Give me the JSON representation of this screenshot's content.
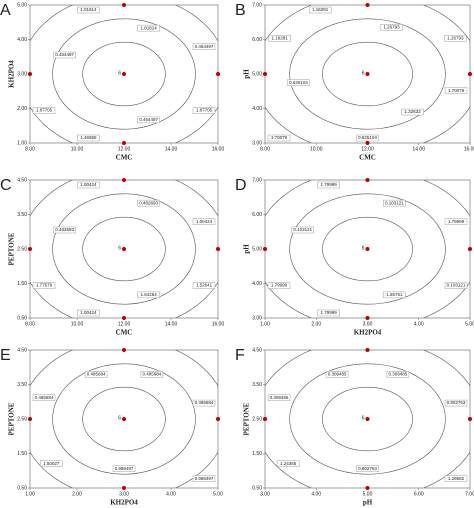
{
  "chart_data": [
    {
      "type": "contour",
      "panel_label": "A",
      "xlabel": "CMC",
      "ylabel": "KH2PO4",
      "xlim": [
        8,
        16
      ],
      "ylim": [
        1,
        5
      ],
      "xticks": [
        {
          "value": 8,
          "label": "8.00"
        },
        {
          "value": 10,
          "label": "10.00"
        },
        {
          "value": 12,
          "label": "12.00"
        },
        {
          "value": 14,
          "label": "14.00"
        },
        {
          "value": 16,
          "label": "16.00"
        }
      ],
      "yticks": [
        {
          "value": 1,
          "label": "1.00"
        },
        {
          "value": 2,
          "label": "2.00"
        },
        {
          "value": 3,
          "label": "3.00"
        },
        {
          "value": 4,
          "label": "4.00"
        },
        {
          "value": 5,
          "label": "5.00"
        }
      ],
      "center_label": "6",
      "points": {
        "x": [
          8,
          12,
          16,
          12,
          12
        ],
        "y": [
          3,
          3,
          3,
          1,
          5
        ],
        "color": "#c00000"
      },
      "annotations": [
        "1.01814",
        "0.464497",
        "1.87705",
        "0.464497",
        "1.46965",
        "1.87705",
        "0.464497",
        "1.01814"
      ]
    },
    {
      "type": "contour",
      "panel_label": "B",
      "xlabel": "CMC",
      "ylabel": "pH",
      "xlim": [
        8,
        16
      ],
      "ylim": [
        3,
        7
      ],
      "xticks": [
        {
          "value": 8,
          "label": "8.00"
        },
        {
          "value": 10,
          "label": "10.00"
        },
        {
          "value": 12,
          "label": "12.00"
        },
        {
          "value": 14,
          "label": "14.00"
        },
        {
          "value": 16,
          "label": "16.00"
        }
      ],
      "yticks": [
        {
          "value": 3,
          "label": "3.00"
        },
        {
          "value": 4,
          "label": "4.00"
        },
        {
          "value": 5,
          "label": "5.00"
        },
        {
          "value": 6,
          "label": "6.00"
        },
        {
          "value": 7,
          "label": "7.00"
        }
      ],
      "center_label": "6",
      "points": {
        "x": [
          8,
          12,
          16,
          12,
          12
        ],
        "y": [
          5,
          5,
          5,
          3,
          7
        ],
        "color": "#c00000"
      },
      "annotations": [
        "1.26793",
        "1.26793",
        "1.70079",
        "1.32633",
        "0.625104",
        "1.70079",
        "0.625104",
        "1.16281",
        "1.16281"
      ]
    },
    {
      "type": "contour",
      "panel_label": "C",
      "xlabel": "CMC",
      "ylabel": "PEPTONE",
      "xlim": [
        8,
        16
      ],
      "ylim": [
        0.5,
        4.5
      ],
      "xticks": [
        {
          "value": 8,
          "label": "8.00"
        },
        {
          "value": 10,
          "label": "10.00"
        },
        {
          "value": 12,
          "label": "12.00"
        },
        {
          "value": 14,
          "label": "14.00"
        },
        {
          "value": 16,
          "label": "16.00"
        }
      ],
      "yticks": [
        {
          "value": 0.5,
          "label": "0.50"
        },
        {
          "value": 1.5,
          "label": "1.50"
        },
        {
          "value": 2.5,
          "label": "2.50"
        },
        {
          "value": 3.5,
          "label": "3.50"
        },
        {
          "value": 4.5,
          "label": "4.50"
        }
      ],
      "center_label": "6",
      "points": {
        "x": [
          8,
          12,
          16,
          12,
          12
        ],
        "y": [
          2.5,
          2.5,
          2.5,
          0.5,
          4.5
        ],
        "color": "#c00000"
      },
      "annotations": [
        "0.482693",
        "1.00424",
        "1.52641",
        "1.64254",
        "1.00424",
        "1.77578",
        "0.482693",
        "1.00424"
      ]
    },
    {
      "type": "contour",
      "panel_label": "D",
      "xlabel": "KH2PO4",
      "ylabel": "pH",
      "xlim": [
        1,
        5
      ],
      "ylim": [
        3,
        7
      ],
      "xticks": [
        {
          "value": 1,
          "label": "1.00"
        },
        {
          "value": 2,
          "label": "2.00"
        },
        {
          "value": 3,
          "label": "3.00"
        },
        {
          "value": 4,
          "label": "4.00"
        },
        {
          "value": 5,
          "label": "5.00"
        }
      ],
      "yticks": [
        {
          "value": 3,
          "label": "3.00"
        },
        {
          "value": 4,
          "label": "4.00"
        },
        {
          "value": 5,
          "label": "5.00"
        },
        {
          "value": 6,
          "label": "6.00"
        },
        {
          "value": 7,
          "label": "7.00"
        }
      ],
      "center_label": "6",
      "points": {
        "x": [
          1,
          3,
          5,
          3,
          3
        ],
        "y": [
          5,
          5,
          5,
          3,
          7
        ],
        "color": "#c00000"
      },
      "annotations": [
        "0.103121",
        "1.79999",
        "0.103121",
        "1.56761",
        "1.79999",
        "1.79999",
        "0.103121",
        "1.79999"
      ]
    },
    {
      "type": "contour",
      "panel_label": "E",
      "xlabel": "KH2PO4",
      "ylabel": "PEPTONE",
      "xlim": [
        1,
        5
      ],
      "ylim": [
        0.5,
        4.5
      ],
      "xticks": [
        {
          "value": 1,
          "label": "1.00"
        },
        {
          "value": 2,
          "label": "2.00"
        },
        {
          "value": 3,
          "label": "3.00"
        },
        {
          "value": 4,
          "label": "4.00"
        },
        {
          "value": 5,
          "label": "5.00"
        }
      ],
      "yticks": [
        {
          "value": 0.5,
          "label": "0.50"
        },
        {
          "value": 1.5,
          "label": "1.50"
        },
        {
          "value": 2.5,
          "label": "2.50"
        },
        {
          "value": 3.5,
          "label": "3.50"
        },
        {
          "value": 4.5,
          "label": "4.50"
        }
      ],
      "center_label": "6",
      "points": {
        "x": [
          1,
          3,
          5,
          3,
          3
        ],
        "y": [
          2.5,
          2.5,
          2.5,
          0.5,
          4.5
        ],
        "color": "#c00000"
      },
      "annotations": [
        "0.485684",
        "0.485684",
        "0.988497",
        "0.988497",
        "1.50027",
        "0.485684",
        "0.485684"
      ]
    },
    {
      "type": "contour",
      "panel_label": "F",
      "xlabel": "pH",
      "ylabel": "PEPTONE",
      "xlim": [
        3,
        7
      ],
      "ylim": [
        0.5,
        4.5
      ],
      "xticks": [
        {
          "value": 3,
          "label": "3.00"
        },
        {
          "value": 4,
          "label": "4.00"
        },
        {
          "value": 5,
          "label": "5.00"
        },
        {
          "value": 6,
          "label": "6.00"
        },
        {
          "value": 7,
          "label": "7.00"
        }
      ],
      "yticks": [
        {
          "value": 0.5,
          "label": "0.50"
        },
        {
          "value": 1.5,
          "label": "1.50"
        },
        {
          "value": 2.5,
          "label": "2.50"
        },
        {
          "value": 3.5,
          "label": "3.50"
        },
        {
          "value": 4.5,
          "label": "4.50"
        }
      ],
      "center_label": "6",
      "points": {
        "x": [
          3,
          5,
          7,
          5,
          5
        ],
        "y": [
          2.5,
          2.5,
          2.5,
          0.5,
          4.5
        ],
        "color": "#c00000"
      },
      "annotations": [
        "0.309485",
        "0.802763",
        "1.29582",
        "0.802763",
        "1.24365",
        "0.309485",
        "0.309485"
      ]
    }
  ]
}
